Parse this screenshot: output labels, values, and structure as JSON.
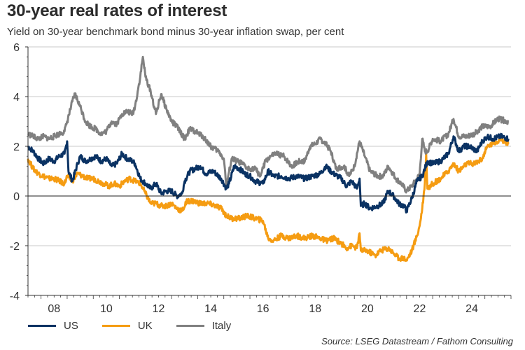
{
  "chart_data": {
    "type": "line",
    "title": "30-year real rates of interest",
    "subtitle": "Yield on 30-year benchmark bond minus 30-year inflation swap, per cent",
    "xlabel": "",
    "ylabel": "",
    "xlim": [
      2007.5,
      2026.0
    ],
    "ylim": [
      -4,
      6
    ],
    "yticks": [
      6,
      4,
      2,
      0,
      -2,
      -4
    ],
    "ytick_labels": [
      "6",
      "4",
      "2",
      "0",
      "-2",
      "-4"
    ],
    "xticks": [
      2008.5,
      2010.5,
      2012.5,
      2014.5,
      2016.5,
      2018.5,
      2020.5,
      2022.5,
      2024.5
    ],
    "xtick_labels": [
      "08",
      "10",
      "12",
      "14",
      "16",
      "18",
      "20",
      "22",
      "24"
    ],
    "grid": true,
    "legend_position": "bottom-left",
    "source": "Source: LSEG Datastream / Fathom Consulting",
    "series": [
      {
        "name": "US",
        "color": "#0a3263",
        "points": [
          [
            2007.5,
            2.0
          ],
          [
            2007.7,
            1.8
          ],
          [
            2007.9,
            1.5
          ],
          [
            2008.1,
            1.3
          ],
          [
            2008.3,
            1.5
          ],
          [
            2008.5,
            1.4
          ],
          [
            2008.7,
            1.6
          ],
          [
            2008.9,
            1.7
          ],
          [
            2009.0,
            2.2
          ],
          [
            2009.05,
            1.0
          ],
          [
            2009.2,
            0.6
          ],
          [
            2009.4,
            1.3
          ],
          [
            2009.5,
            1.6
          ],
          [
            2009.7,
            1.4
          ],
          [
            2009.9,
            1.5
          ],
          [
            2010.1,
            1.6
          ],
          [
            2010.3,
            1.4
          ],
          [
            2010.5,
            1.5
          ],
          [
            2010.7,
            1.2
          ],
          [
            2010.9,
            1.3
          ],
          [
            2011.1,
            1.7
          ],
          [
            2011.3,
            1.5
          ],
          [
            2011.5,
            1.4
          ],
          [
            2011.6,
            1.3
          ],
          [
            2011.8,
            0.7
          ],
          [
            2012.0,
            0.5
          ],
          [
            2012.2,
            0.3
          ],
          [
            2012.4,
            0.5
          ],
          [
            2012.6,
            0.1
          ],
          [
            2012.8,
            0.2
          ],
          [
            2013.0,
            0.2
          ],
          [
            2013.2,
            0.0
          ],
          [
            2013.4,
            0.1
          ],
          [
            2013.5,
            0.6
          ],
          [
            2013.7,
            1.0
          ],
          [
            2013.9,
            1.1
          ],
          [
            2014.1,
            1.2
          ],
          [
            2014.3,
            0.9
          ],
          [
            2014.6,
            1.0
          ],
          [
            2014.9,
            0.7
          ],
          [
            2015.1,
            0.3
          ],
          [
            2015.2,
            0.5
          ],
          [
            2015.4,
            1.2
          ],
          [
            2015.6,
            1.1
          ],
          [
            2015.8,
            0.9
          ],
          [
            2016.0,
            0.8
          ],
          [
            2016.2,
            0.6
          ],
          [
            2016.5,
            0.5
          ],
          [
            2016.7,
            1.0
          ],
          [
            2016.9,
            0.8
          ],
          [
            2017.2,
            0.8
          ],
          [
            2017.5,
            0.7
          ],
          [
            2017.8,
            0.8
          ],
          [
            2018.1,
            0.7
          ],
          [
            2018.4,
            0.8
          ],
          [
            2018.7,
            0.9
          ],
          [
            2018.9,
            1.2
          ],
          [
            2019.2,
            0.9
          ],
          [
            2019.5,
            0.7
          ],
          [
            2019.7,
            0.4
          ],
          [
            2019.9,
            0.6
          ],
          [
            2020.1,
            0.3
          ],
          [
            2020.2,
            0.7
          ],
          [
            2020.25,
            -0.4
          ],
          [
            2020.4,
            -0.3
          ],
          [
            2020.6,
            -0.5
          ],
          [
            2020.9,
            -0.4
          ],
          [
            2021.1,
            -0.3
          ],
          [
            2021.3,
            0.2
          ],
          [
            2021.5,
            0.0
          ],
          [
            2021.7,
            -0.3
          ],
          [
            2021.9,
            -0.4
          ],
          [
            2022.0,
            -0.6
          ],
          [
            2022.2,
            -0.1
          ],
          [
            2022.4,
            0.6
          ],
          [
            2022.6,
            0.8
          ],
          [
            2022.8,
            1.4
          ],
          [
            2023.0,
            1.3
          ],
          [
            2023.3,
            1.4
          ],
          [
            2023.6,
            1.7
          ],
          [
            2023.8,
            2.4
          ],
          [
            2024.0,
            1.8
          ],
          [
            2024.2,
            2.0
          ],
          [
            2024.4,
            2.0
          ],
          [
            2024.7,
            1.8
          ],
          [
            2024.9,
            2.2
          ],
          [
            2025.1,
            2.4
          ],
          [
            2025.3,
            2.3
          ],
          [
            2025.6,
            2.4
          ],
          [
            2025.9,
            2.3
          ]
        ]
      },
      {
        "name": "UK",
        "color": "#f59c12",
        "points": [
          [
            2007.5,
            1.5
          ],
          [
            2007.7,
            1.1
          ],
          [
            2007.9,
            0.9
          ],
          [
            2008.1,
            0.8
          ],
          [
            2008.3,
            0.7
          ],
          [
            2008.5,
            0.7
          ],
          [
            2008.7,
            0.6
          ],
          [
            2008.9,
            0.5
          ],
          [
            2009.0,
            0.8
          ],
          [
            2009.2,
            0.6
          ],
          [
            2009.4,
            0.9
          ],
          [
            2009.6,
            0.8
          ],
          [
            2009.8,
            0.7
          ],
          [
            2010.0,
            0.7
          ],
          [
            2010.2,
            0.6
          ],
          [
            2010.4,
            0.5
          ],
          [
            2010.6,
            0.4
          ],
          [
            2010.8,
            0.5
          ],
          [
            2011.0,
            0.4
          ],
          [
            2011.2,
            0.6
          ],
          [
            2011.4,
            0.7
          ],
          [
            2011.6,
            0.6
          ],
          [
            2011.8,
            0.5
          ],
          [
            2012.0,
            0.1
          ],
          [
            2012.2,
            -0.3
          ],
          [
            2012.4,
            -0.3
          ],
          [
            2012.6,
            -0.4
          ],
          [
            2012.8,
            -0.4
          ],
          [
            2013.0,
            -0.3
          ],
          [
            2013.2,
            -0.5
          ],
          [
            2013.4,
            -0.6
          ],
          [
            2013.6,
            -0.2
          ],
          [
            2013.8,
            -0.2
          ],
          [
            2014.1,
            -0.3
          ],
          [
            2014.4,
            -0.3
          ],
          [
            2014.7,
            -0.4
          ],
          [
            2014.9,
            -0.5
          ],
          [
            2015.1,
            -0.8
          ],
          [
            2015.3,
            -0.9
          ],
          [
            2015.6,
            -0.9
          ],
          [
            2015.9,
            -0.8
          ],
          [
            2016.2,
            -0.9
          ],
          [
            2016.5,
            -1.0
          ],
          [
            2016.7,
            -1.7
          ],
          [
            2016.9,
            -1.8
          ],
          [
            2017.2,
            -1.6
          ],
          [
            2017.5,
            -1.7
          ],
          [
            2017.8,
            -1.6
          ],
          [
            2018.1,
            -1.7
          ],
          [
            2018.4,
            -1.6
          ],
          [
            2018.7,
            -1.7
          ],
          [
            2018.9,
            -1.8
          ],
          [
            2019.2,
            -1.7
          ],
          [
            2019.5,
            -1.9
          ],
          [
            2019.7,
            -2.1
          ],
          [
            2019.9,
            -2.0
          ],
          [
            2020.1,
            -2.1
          ],
          [
            2020.2,
            -1.5
          ],
          [
            2020.25,
            -2.2
          ],
          [
            2020.5,
            -2.2
          ],
          [
            2020.8,
            -2.4
          ],
          [
            2021.0,
            -2.2
          ],
          [
            2021.3,
            -2.1
          ],
          [
            2021.5,
            -2.3
          ],
          [
            2021.7,
            -2.5
          ],
          [
            2021.9,
            -2.5
          ],
          [
            2022.0,
            -2.6
          ],
          [
            2022.2,
            -2.2
          ],
          [
            2022.4,
            -1.6
          ],
          [
            2022.5,
            -1.2
          ],
          [
            2022.6,
            -0.5
          ],
          [
            2022.7,
            0.5
          ],
          [
            2022.75,
            1.7
          ],
          [
            2022.8,
            0.3
          ],
          [
            2023.0,
            0.5
          ],
          [
            2023.3,
            0.7
          ],
          [
            2023.6,
            1.0
          ],
          [
            2023.8,
            1.3
          ],
          [
            2024.0,
            1.0
          ],
          [
            2024.3,
            1.3
          ],
          [
            2024.6,
            1.3
          ],
          [
            2024.9,
            1.5
          ],
          [
            2025.1,
            2.0
          ],
          [
            2025.3,
            2.1
          ],
          [
            2025.6,
            2.3
          ],
          [
            2025.9,
            2.1
          ]
        ]
      },
      {
        "name": "Italy",
        "color": "#808080",
        "points": [
          [
            2007.5,
            2.5
          ],
          [
            2007.7,
            2.4
          ],
          [
            2007.9,
            2.3
          ],
          [
            2008.1,
            2.4
          ],
          [
            2008.3,
            2.3
          ],
          [
            2008.5,
            2.4
          ],
          [
            2008.7,
            2.5
          ],
          [
            2008.9,
            2.6
          ],
          [
            2009.0,
            3.0
          ],
          [
            2009.2,
            3.8
          ],
          [
            2009.3,
            4.1
          ],
          [
            2009.5,
            3.6
          ],
          [
            2009.7,
            3.0
          ],
          [
            2009.9,
            2.8
          ],
          [
            2010.1,
            2.7
          ],
          [
            2010.3,
            2.5
          ],
          [
            2010.5,
            2.6
          ],
          [
            2010.7,
            3.0
          ],
          [
            2010.9,
            2.9
          ],
          [
            2011.1,
            3.3
          ],
          [
            2011.3,
            3.4
          ],
          [
            2011.5,
            3.3
          ],
          [
            2011.6,
            3.6
          ],
          [
            2011.8,
            4.8
          ],
          [
            2011.9,
            5.6
          ],
          [
            2012.0,
            4.8
          ],
          [
            2012.2,
            4.2
          ],
          [
            2012.4,
            3.3
          ],
          [
            2012.5,
            3.7
          ],
          [
            2012.6,
            4.1
          ],
          [
            2012.8,
            3.5
          ],
          [
            2013.0,
            3.0
          ],
          [
            2013.2,
            2.8
          ],
          [
            2013.5,
            2.3
          ],
          [
            2013.7,
            2.7
          ],
          [
            2013.9,
            2.6
          ],
          [
            2014.2,
            2.4
          ],
          [
            2014.5,
            2.0
          ],
          [
            2014.8,
            1.8
          ],
          [
            2015.0,
            1.5
          ],
          [
            2015.1,
            0.4
          ],
          [
            2015.3,
            1.5
          ],
          [
            2015.5,
            1.4
          ],
          [
            2015.7,
            1.3
          ],
          [
            2015.9,
            1.1
          ],
          [
            2016.2,
            1.1
          ],
          [
            2016.4,
            0.8
          ],
          [
            2016.6,
            1.4
          ],
          [
            2016.8,
            1.6
          ],
          [
            2017.0,
            1.7
          ],
          [
            2017.3,
            1.6
          ],
          [
            2017.6,
            1.2
          ],
          [
            2017.9,
            1.4
          ],
          [
            2018.1,
            1.4
          ],
          [
            2018.3,
            2.0
          ],
          [
            2018.5,
            2.1
          ],
          [
            2018.7,
            2.3
          ],
          [
            2018.9,
            2.1
          ],
          [
            2019.1,
            1.8
          ],
          [
            2019.3,
            1.1
          ],
          [
            2019.6,
            1.2
          ],
          [
            2019.8,
            0.8
          ],
          [
            2020.0,
            1.2
          ],
          [
            2020.2,
            2.2
          ],
          [
            2020.4,
            1.6
          ],
          [
            2020.6,
            1.0
          ],
          [
            2020.9,
            0.8
          ],
          [
            2021.1,
            0.8
          ],
          [
            2021.3,
            1.2
          ],
          [
            2021.6,
            0.7
          ],
          [
            2021.8,
            0.5
          ],
          [
            2022.0,
            0.2
          ],
          [
            2022.2,
            0.4
          ],
          [
            2022.4,
            0.7
          ],
          [
            2022.5,
            0.9
          ],
          [
            2022.6,
            2.3
          ],
          [
            2022.7,
            1.8
          ],
          [
            2022.8,
            1.8
          ],
          [
            2023.0,
            2.3
          ],
          [
            2023.3,
            2.2
          ],
          [
            2023.6,
            2.5
          ],
          [
            2023.8,
            3.1
          ],
          [
            2024.0,
            2.4
          ],
          [
            2024.3,
            2.4
          ],
          [
            2024.6,
            2.5
          ],
          [
            2024.9,
            2.8
          ],
          [
            2025.2,
            2.8
          ],
          [
            2025.5,
            3.1
          ],
          [
            2025.9,
            3.0
          ]
        ]
      }
    ]
  },
  "legend": [
    {
      "label": "US",
      "color": "#0a3263"
    },
    {
      "label": "UK",
      "color": "#f59c12"
    },
    {
      "label": "Italy",
      "color": "#808080"
    }
  ]
}
